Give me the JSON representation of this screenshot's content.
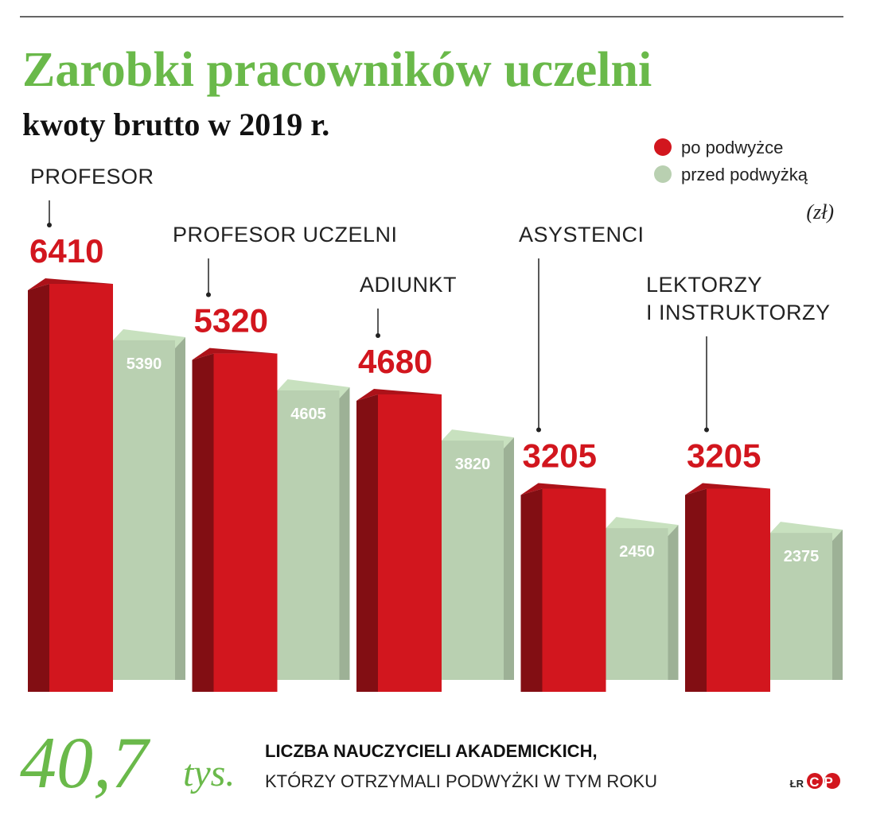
{
  "chart_data": {
    "type": "bar",
    "title": "Zarobki pracowników uczelni",
    "subtitle": "kwoty brutto w 2019 r.",
    "unit": "(zł)",
    "categories": [
      "PROFESOR",
      "PROFESOR UCZELNI",
      "ADIUNKT",
      "ASYSTENCI",
      "LEKTORZY\nI INSTRUKTORZY"
    ],
    "series": [
      {
        "name": "po podwyżce",
        "color": "#d2161e",
        "values": [
          6410,
          5320,
          4680,
          3205,
          3205
        ]
      },
      {
        "name": "przed podwyżką",
        "color": "#b9d0b1",
        "values": [
          5390,
          4605,
          3820,
          2450,
          2375
        ]
      }
    ]
  },
  "footer": {
    "number": "40,7",
    "unit": "tys.",
    "line1": "LICZBA NAUCZYCIELI AKADEMICKICH,",
    "line2": "KTÓRZY OTRZYMALI PODWYŻKI W TYM ROKU",
    "credit": "ŁR",
    "logo": "CP"
  }
}
